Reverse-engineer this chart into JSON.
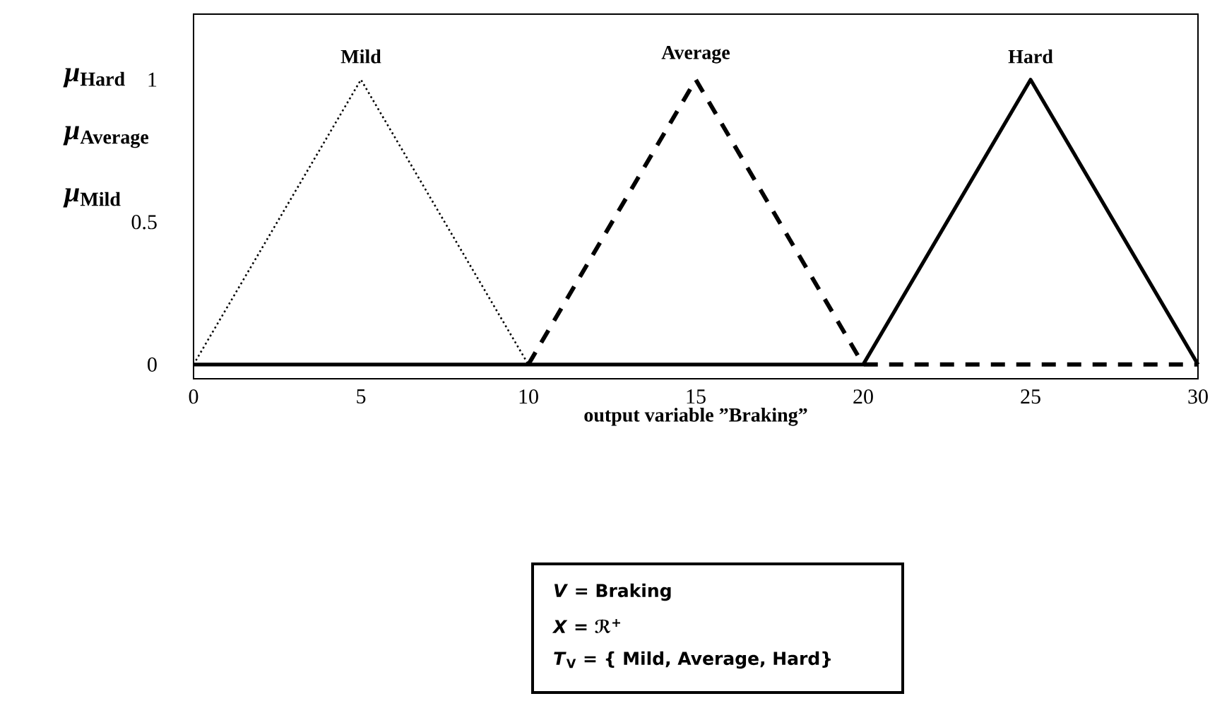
{
  "chart_data": {
    "type": "line",
    "xlabel": "output variable ”Braking”",
    "xlim": [
      0,
      30
    ],
    "ylim": [
      -0.05,
      1.23
    ],
    "xticks": [
      0,
      5,
      10,
      15,
      20,
      25,
      30
    ],
    "yticks": [
      0,
      0.5,
      1
    ],
    "series": [
      {
        "name": "Mild",
        "color": "#000000",
        "line_style": "dotted",
        "x": [
          0,
          5,
          10
        ],
        "values": [
          0,
          1,
          0
        ]
      },
      {
        "name": "Average",
        "color": "#000000",
        "line_style": "dashed",
        "x": [
          10,
          15,
          20,
          30
        ],
        "values": [
          0,
          1,
          0,
          0
        ]
      },
      {
        "name": "Hard",
        "color": "#000000",
        "line_style": "solid",
        "x": [
          0,
          20,
          25,
          30
        ],
        "values": [
          0,
          0,
          1,
          0
        ]
      }
    ],
    "annotations": [
      "*μ*$_{Hard}$",
      "*μ*$_{Average}$",
      "*μ*$_{Mild}$",
      "*V* = Braking",
      "*X* = ℛ$^{+}$",
      "*T*$_{V}$ = { Mild, Average, Hard}"
    ]
  }
}
